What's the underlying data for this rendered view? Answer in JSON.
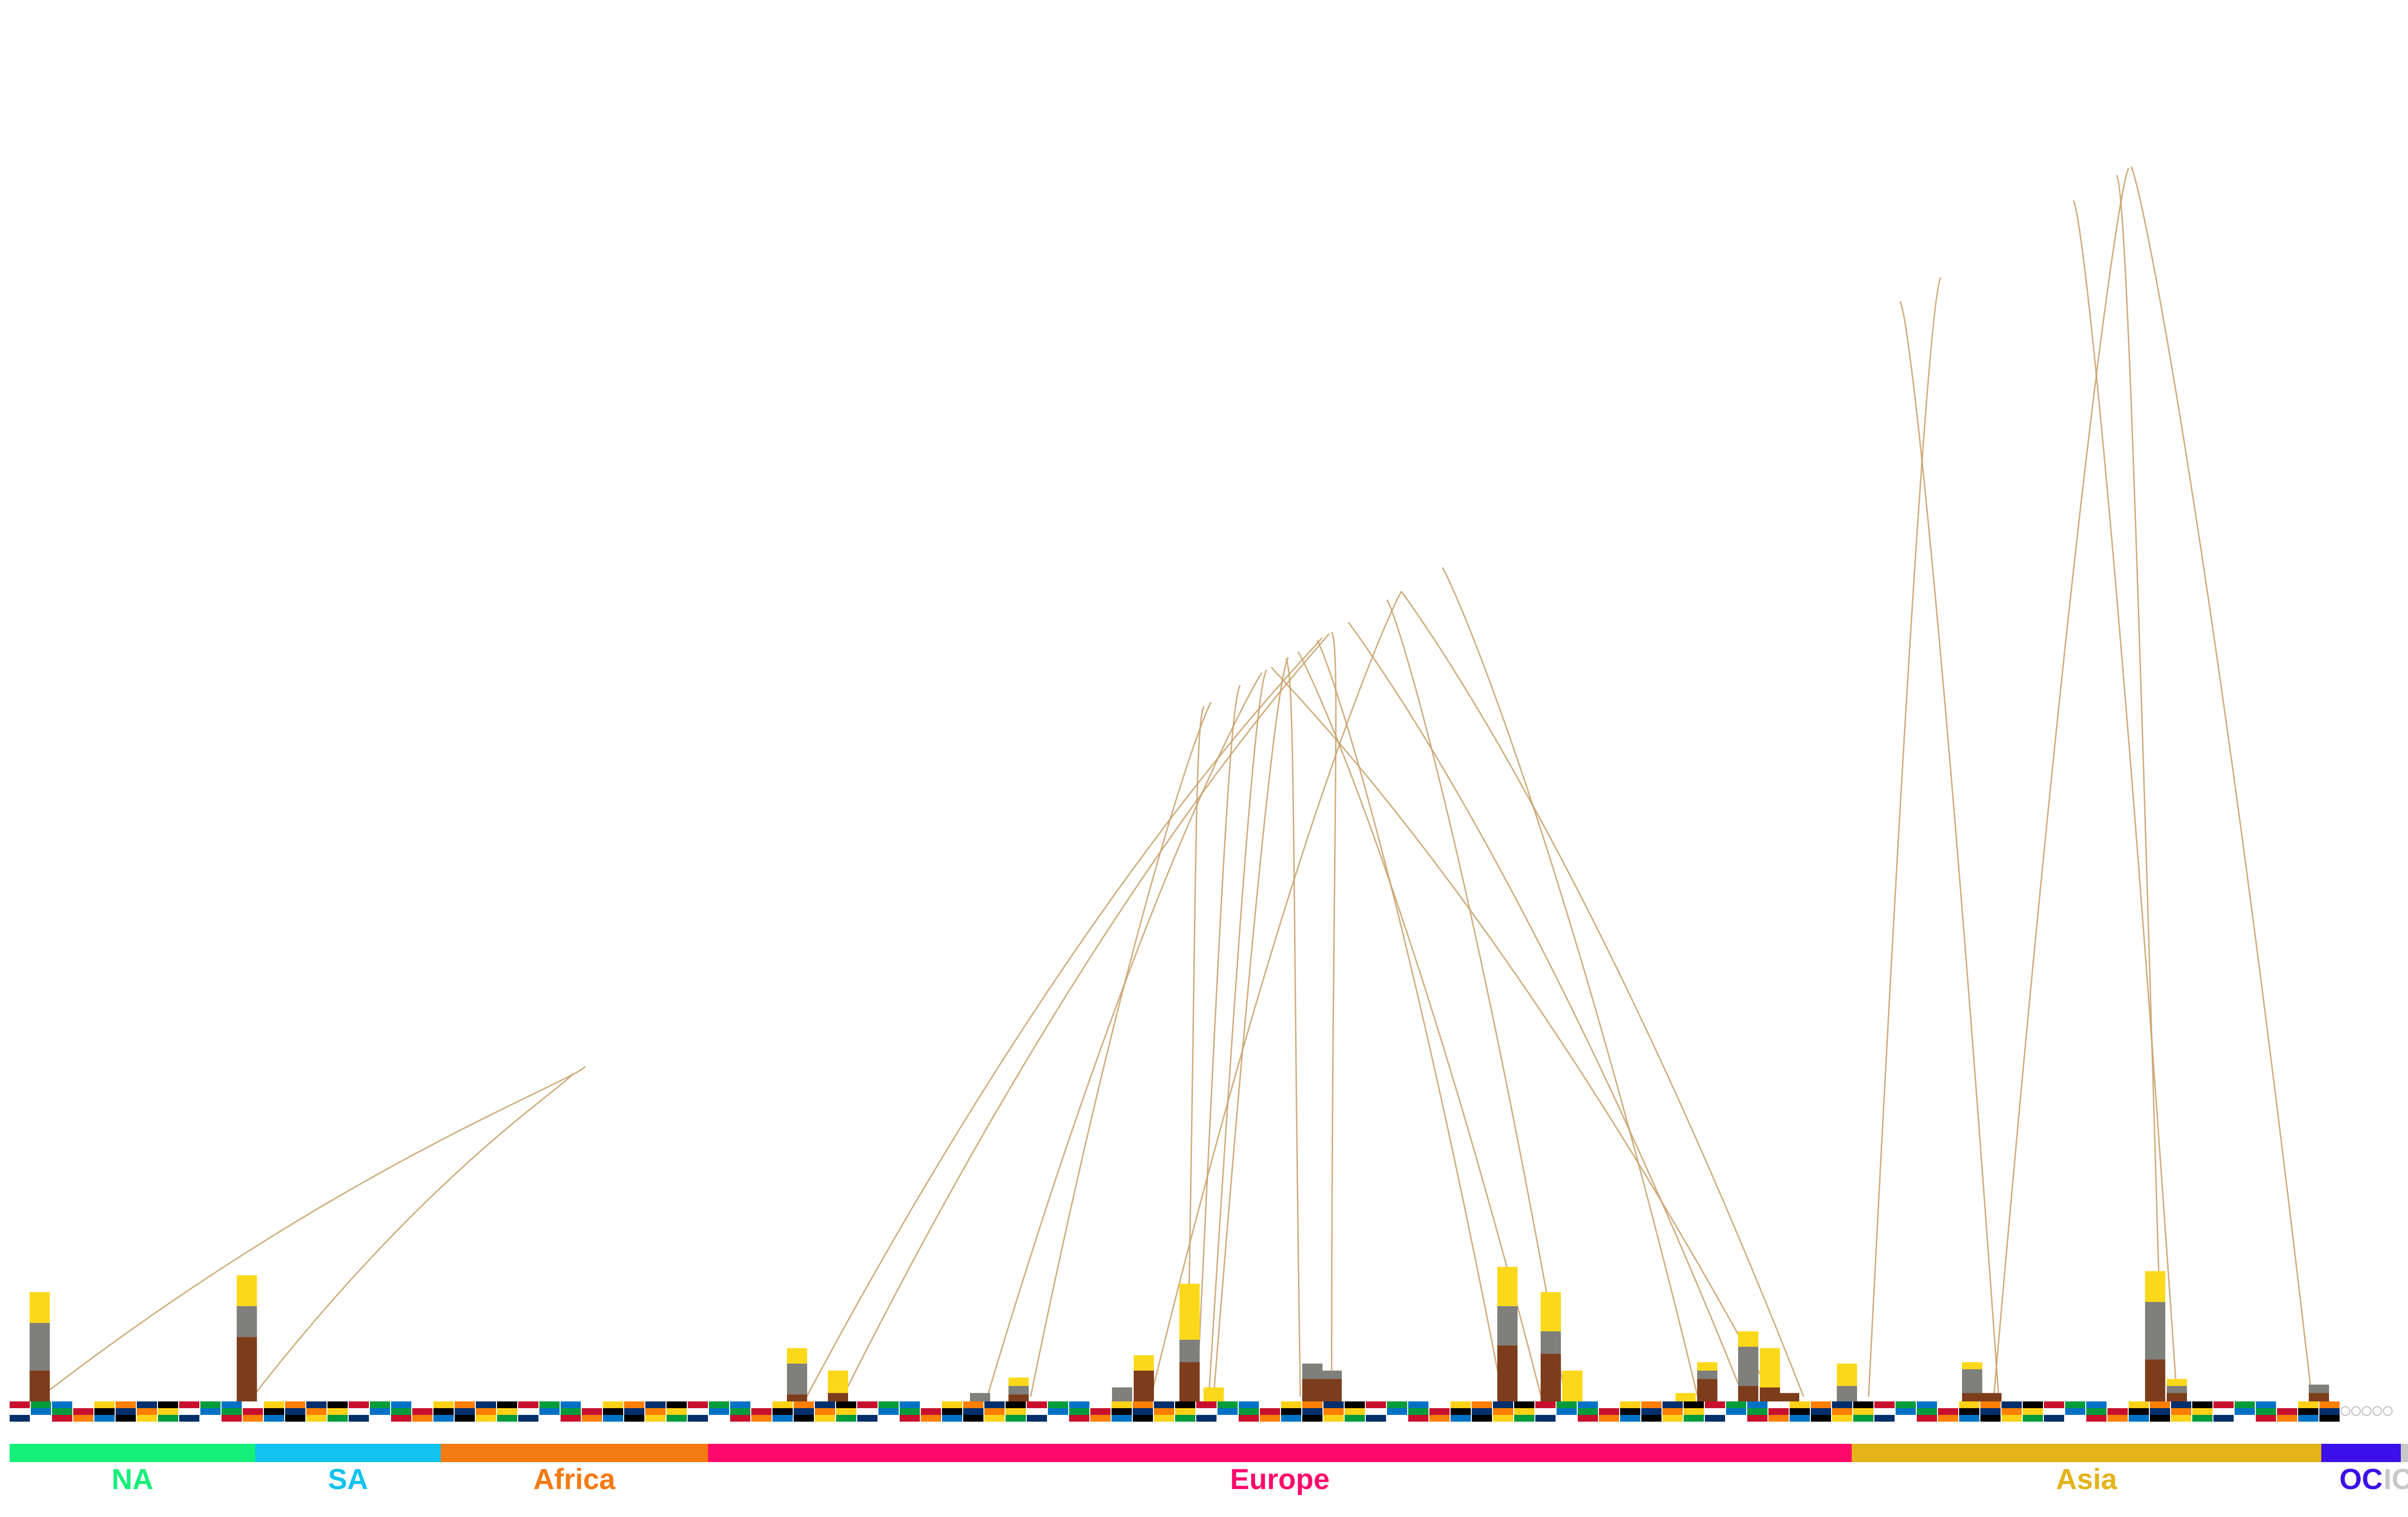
{
  "colors": {
    "gold": "#fbd91a",
    "silver": "#7f7f7b",
    "bronze": "#7d3d1c",
    "arc": "#c8a06a",
    "flag_palette": [
      "#c8102e",
      "#ffffff",
      "#002f6c",
      "#009b3a",
      "#fcd116",
      "#000000",
      "#0072c6",
      "#ff7f00"
    ]
  },
  "chart_data": {
    "type": "bar",
    "stack_order": [
      "bronze",
      "silver",
      "gold"
    ],
    "ylim": [
      0,
      100
    ],
    "x_range": [
      0,
      100
    ],
    "regions": [
      {
        "name": "NA",
        "start": 0.0,
        "end": 10.2,
        "color": "#14f07a"
      },
      {
        "name": "SA",
        "start": 10.2,
        "end": 17.9,
        "color": "#12c2ef"
      },
      {
        "name": "Africa",
        "start": 17.9,
        "end": 29.0,
        "color": "#f47a12"
      },
      {
        "name": "Europe",
        "start": 29.0,
        "end": 76.5,
        "color": "#ff0a6c"
      },
      {
        "name": "Asia",
        "start": 76.5,
        "end": 96.0,
        "color": "#e3b31a"
      },
      {
        "name": "OC",
        "start": 96.0,
        "end": 99.3,
        "color": "#3b10e8"
      },
      {
        "name": "IOA",
        "start": 99.3,
        "end": 100.0,
        "color": "#c8c8c8"
      }
    ],
    "countries": [
      {
        "x": 1.25,
        "bronze": 2.2,
        "silver": 3.4,
        "gold": 2.2
      },
      {
        "x": 9.85,
        "bronze": 4.6,
        "silver": 2.2,
        "gold": 2.2
      },
      {
        "x": 32.7,
        "bronze": 0.5,
        "silver": 2.2,
        "gold": 1.1
      },
      {
        "x": 34.4,
        "bronze": 0.6,
        "silver": 0.0,
        "gold": 1.6
      },
      {
        "x": 40.3,
        "bronze": 0.0,
        "silver": 0.6,
        "gold": 0.0
      },
      {
        "x": 41.9,
        "bronze": 0.5,
        "silver": 0.6,
        "gold": 0.6
      },
      {
        "x": 46.2,
        "bronze": 0.0,
        "silver": 1.0,
        "gold": 0.0
      },
      {
        "x": 47.1,
        "bronze": 2.2,
        "silver": 0.0,
        "gold": 1.1
      },
      {
        "x": 49.0,
        "bronze": 2.8,
        "silver": 1.6,
        "gold": 4.0
      },
      {
        "x": 50.0,
        "bronze": 0.0,
        "silver": 0.0,
        "gold": 1.0
      },
      {
        "x": 54.1,
        "bronze": 1.6,
        "silver": 1.1,
        "gold": 0.0
      },
      {
        "x": 54.9,
        "bronze": 1.6,
        "silver": 0.6,
        "gold": 0.0
      },
      {
        "x": 62.2,
        "bronze": 4.0,
        "silver": 2.8,
        "gold": 2.8
      },
      {
        "x": 64.0,
        "bronze": 3.4,
        "silver": 1.6,
        "gold": 2.8
      },
      {
        "x": 64.9,
        "bronze": 0.0,
        "silver": 0.0,
        "gold": 2.2
      },
      {
        "x": 69.6,
        "bronze": 0.0,
        "silver": 0.0,
        "gold": 0.6
      },
      {
        "x": 70.5,
        "bronze": 1.6,
        "silver": 0.6,
        "gold": 0.6
      },
      {
        "x": 72.2,
        "bronze": 1.1,
        "silver": 2.8,
        "gold": 1.1
      },
      {
        "x": 73.1,
        "bronze": 1.0,
        "silver": 0.0,
        "gold": 2.8
      },
      {
        "x": 73.9,
        "bronze": 0.6,
        "silver": 0.0,
        "gold": 0.0
      },
      {
        "x": 76.3,
        "bronze": 0.0,
        "silver": 1.1,
        "gold": 1.6
      },
      {
        "x": 81.5,
        "bronze": 0.6,
        "silver": 1.7,
        "gold": 0.5
      },
      {
        "x": 82.3,
        "bronze": 0.6,
        "silver": 0.0,
        "gold": 0.0
      },
      {
        "x": 89.1,
        "bronze": 3.0,
        "silver": 4.1,
        "gold": 2.2
      },
      {
        "x": 90.0,
        "bronze": 0.6,
        "silver": 0.5,
        "gold": 0.5
      },
      {
        "x": 95.9,
        "bronze": 0.6,
        "silver": 0.6,
        "gold": 0.0
      }
    ],
    "arcs": [
      [
        1.3,
        23.9
      ],
      [
        10.1,
        23.4
      ],
      [
        33.1,
        54.5
      ],
      [
        34.6,
        54.8
      ],
      [
        40.6,
        52.0
      ],
      [
        42.4,
        49.9
      ],
      [
        47.4,
        57.8
      ],
      [
        48.9,
        49.6
      ],
      [
        49.3,
        51.1
      ],
      [
        49.8,
        52.2
      ],
      [
        50.0,
        53.1
      ],
      [
        53.6,
        53.0
      ],
      [
        54.9,
        54.9
      ],
      [
        62.0,
        54.3
      ],
      [
        63.6,
        53.5
      ],
      [
        64.6,
        57.2
      ],
      [
        70.1,
        59.5
      ],
      [
        72.0,
        55.6
      ],
      [
        73.2,
        52.4
      ],
      [
        74.5,
        57.8
      ],
      [
        77.2,
        80.2
      ],
      [
        82.6,
        78.5
      ],
      [
        82.4,
        88.0
      ],
      [
        90.0,
        85.7
      ],
      [
        89.4,
        87.5
      ],
      [
        95.6,
        88.1
      ]
    ]
  }
}
